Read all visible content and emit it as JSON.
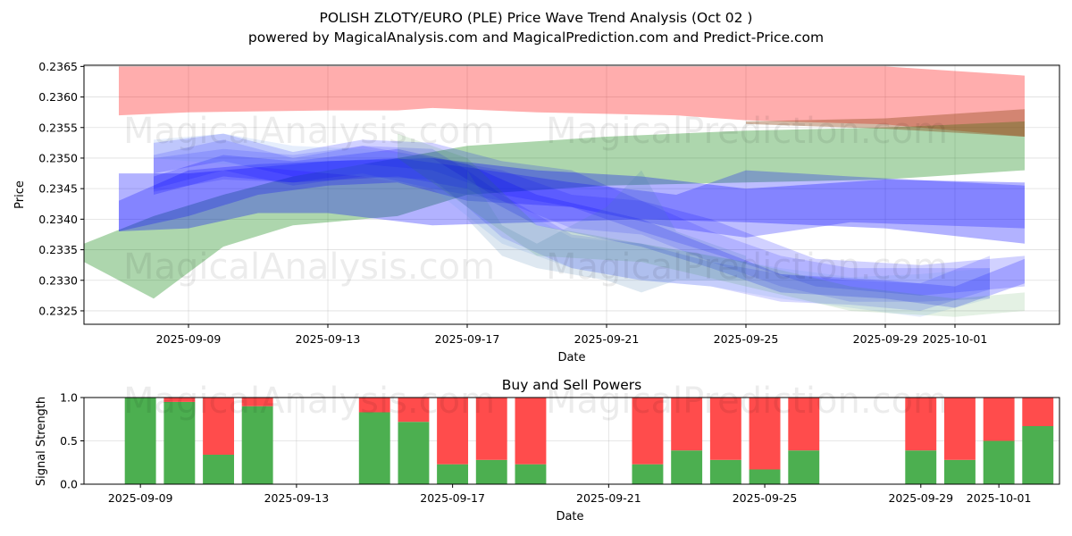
{
  "chart_data": [
    {
      "type": "area",
      "title": "POLISH ZLOTY/EURO (PLE) Price Wave Trend Analysis (Oct 02 )",
      "subtitle": "powered by MagicalAnalysis.com and MagicalPrediction.com and Predict-Price.com",
      "xlabel": "Date",
      "ylabel": "Price",
      "xlim": [
        "2025-09-06",
        "2025-10-04"
      ],
      "ylim": [
        0.23228,
        0.23652
      ],
      "x_ticks": [
        "2025-09-09",
        "2025-09-13",
        "2025-09-17",
        "2025-09-21",
        "2025-09-25",
        "2025-09-29",
        "2025-10-01"
      ],
      "y_ticks": [
        "0.2325",
        "0.2330",
        "0.2335",
        "0.2340",
        "0.2345",
        "0.2350",
        "0.2355",
        "0.2360",
        "0.2365"
      ],
      "grid": true,
      "watermarks": [
        "MagicalAnalysis.com",
        "MagicalPrediction.com"
      ],
      "bands": [
        {
          "color": "#ff0000",
          "opacity": 0.32,
          "x": [
            "2025-09-07",
            "2025-09-09",
            "2025-09-13",
            "2025-09-15",
            "2025-09-16",
            "2025-09-19",
            "2025-09-23",
            "2025-09-25",
            "2025-09-29",
            "2025-10-03"
          ],
          "upper": [
            0.2365,
            0.2365,
            0.2365,
            0.2365,
            0.2365,
            0.2365,
            0.2365,
            0.2365,
            0.2365,
            0.23635
          ],
          "lower": [
            0.2357,
            0.23575,
            0.23578,
            0.23578,
            0.23582,
            0.23575,
            0.2357,
            0.23562,
            0.23555,
            0.23535
          ]
        },
        {
          "color": "#008000",
          "opacity": 0.32,
          "x": [
            "2025-09-06",
            "2025-09-08",
            "2025-09-10",
            "2025-09-12",
            "2025-09-15",
            "2025-09-17",
            "2025-09-21",
            "2025-09-25",
            "2025-09-29",
            "2025-10-03"
          ],
          "upper": [
            0.2336,
            0.23405,
            0.2344,
            0.2347,
            0.235,
            0.2352,
            0.23535,
            0.23545,
            0.2355,
            0.2356
          ],
          "lower": [
            0.2333,
            0.2327,
            0.23355,
            0.2339,
            0.23405,
            0.2344,
            0.23455,
            0.2346,
            0.23465,
            0.2348
          ]
        },
        {
          "color": "#8b4513",
          "opacity": 0.38,
          "x": [
            "2025-09-25",
            "2025-09-29",
            "2025-10-03"
          ],
          "upper": [
            0.2356,
            0.23565,
            0.2358
          ],
          "lower": [
            0.23556,
            0.23548,
            0.23535
          ]
        },
        {
          "color": "#0000ff",
          "opacity": 0.3,
          "x": [
            "2025-09-07",
            "2025-09-09",
            "2025-09-11",
            "2025-09-13",
            "2025-09-16",
            "2025-09-19",
            "2025-09-22",
            "2025-09-25",
            "2025-09-29",
            "2025-10-03"
          ],
          "upper": [
            0.23475,
            0.23475,
            0.23485,
            0.23495,
            0.235,
            0.2348,
            0.2347,
            0.2345,
            0.23465,
            0.2346
          ],
          "lower": [
            0.2338,
            0.23385,
            0.2341,
            0.2341,
            0.2339,
            0.23395,
            0.234,
            0.23395,
            0.23385,
            0.2336
          ]
        },
        {
          "color": "#0000ff",
          "opacity": 0.26,
          "x": [
            "2025-09-07",
            "2025-09-09",
            "2025-09-11",
            "2025-09-13",
            "2025-09-15",
            "2025-09-17",
            "2025-09-20",
            "2025-09-23",
            "2025-09-25",
            "2025-09-28",
            "2025-10-03"
          ],
          "upper": [
            0.2343,
            0.2348,
            0.2349,
            0.23495,
            0.235,
            0.23485,
            0.2346,
            0.2344,
            0.2348,
            0.2347,
            0.23455
          ],
          "lower": [
            0.2338,
            0.23405,
            0.2344,
            0.23455,
            0.2346,
            0.2343,
            0.2342,
            0.23385,
            0.2337,
            0.23395,
            0.23385
          ]
        },
        {
          "color": "#0000ff",
          "opacity": 0.22,
          "x": [
            "2025-09-08",
            "2025-09-10",
            "2025-09-12",
            "2025-09-15",
            "2025-09-17",
            "2025-09-19",
            "2025-09-22",
            "2025-09-24",
            "2025-09-26",
            "2025-09-29",
            "2025-10-01",
            "2025-10-03"
          ],
          "upper": [
            0.2347,
            0.23505,
            0.23495,
            0.23515,
            0.2349,
            0.2344,
            0.234,
            0.23355,
            0.2331,
            0.233,
            0.2329,
            0.23335
          ],
          "lower": [
            0.2344,
            0.2347,
            0.2346,
            0.2347,
            0.2345,
            0.2339,
            0.23355,
            0.2332,
            0.2328,
            0.2327,
            0.23255,
            0.23295
          ]
        },
        {
          "color": "#0000ff",
          "opacity": 0.18,
          "x": [
            "2025-09-08",
            "2025-09-10",
            "2025-09-12",
            "2025-09-14",
            "2025-09-16",
            "2025-09-18",
            "2025-09-20",
            "2025-09-22",
            "2025-09-24",
            "2025-09-27",
            "2025-09-30",
            "2025-10-03"
          ],
          "upper": [
            0.23525,
            0.2354,
            0.2351,
            0.2353,
            0.23525,
            0.23495,
            0.2348,
            0.2343,
            0.234,
            0.23335,
            0.23325,
            0.2334
          ],
          "lower": [
            0.23475,
            0.23495,
            0.2347,
            0.2349,
            0.2348,
            0.2344,
            0.2342,
            0.2338,
            0.23345,
            0.2329,
            0.23275,
            0.2329
          ]
        },
        {
          "color": "#0000ff",
          "opacity": 0.15,
          "x": [
            "2025-09-08",
            "2025-09-10",
            "2025-09-12",
            "2025-09-14",
            "2025-09-16",
            "2025-09-17",
            "2025-09-18",
            "2025-09-20",
            "2025-09-22",
            "2025-09-24",
            "2025-09-26",
            "2025-09-28",
            "2025-09-30",
            "2025-10-02"
          ],
          "upper": [
            0.23505,
            0.2353,
            0.235,
            0.2352,
            0.23515,
            0.2348,
            0.2344,
            0.23375,
            0.2336,
            0.2333,
            0.2331,
            0.233,
            0.23295,
            0.2334
          ],
          "lower": [
            0.2345,
            0.2348,
            0.23455,
            0.2347,
            0.23465,
            0.2342,
            0.2337,
            0.2332,
            0.233,
            0.2329,
            0.23265,
            0.2326,
            0.2325,
            0.23285
          ]
        },
        {
          "color": "#0000ff",
          "opacity": 0.14,
          "x": [
            "2025-09-08",
            "2025-09-10",
            "2025-09-12",
            "2025-09-14",
            "2025-09-16",
            "2025-09-18",
            "2025-09-20",
            "2025-09-22",
            "2025-09-24",
            "2025-09-26",
            "2025-09-28",
            "2025-09-30",
            "2025-10-02"
          ],
          "upper": [
            0.235,
            0.23515,
            0.23505,
            0.2352,
            0.235,
            0.2348,
            0.2344,
            0.2343,
            0.2338,
            0.2334,
            0.2332,
            0.2332,
            0.2332
          ],
          "lower": [
            0.23445,
            0.23465,
            0.2346,
            0.23475,
            0.2345,
            0.2343,
            0.23385,
            0.23375,
            0.2333,
            0.2329,
            0.23265,
            0.23265,
            0.2327
          ]
        },
        {
          "color": "#6495ed",
          "opacity": 0.16,
          "x": [
            "2025-09-08",
            "2025-09-10",
            "2025-09-12",
            "2025-09-14",
            "2025-09-16",
            "2025-09-18",
            "2025-09-20",
            "2025-09-22",
            "2025-09-24",
            "2025-09-26",
            "2025-09-28",
            "2025-09-30",
            "2025-10-02"
          ],
          "upper": [
            0.2353,
            0.2354,
            0.2352,
            0.23515,
            0.235,
            0.2343,
            0.2337,
            0.2336,
            0.2334,
            0.2332,
            0.23305,
            0.2331,
            0.2332
          ],
          "lower": [
            0.235,
            0.2349,
            0.2348,
            0.2347,
            0.2345,
            0.2336,
            0.2332,
            0.233,
            0.2329,
            0.2327,
            0.23255,
            0.2324,
            0.2327
          ]
        },
        {
          "color": "#4682b4",
          "opacity": 0.18,
          "x": [
            "2025-09-17",
            "2025-09-18",
            "2025-09-19",
            "2025-09-21",
            "2025-09-22",
            "2025-09-23",
            "2025-09-25"
          ],
          "upper": [
            0.2348,
            0.2339,
            0.2336,
            0.2342,
            0.2348,
            0.2338,
            0.2334
          ],
          "lower": [
            0.234,
            0.2334,
            0.2332,
            0.233,
            0.2328,
            0.233,
            0.233
          ]
        },
        {
          "color": "#228b22",
          "opacity": 0.12,
          "x": [
            "2025-09-15",
            "2025-09-17",
            "2025-09-19",
            "2025-09-22",
            "2025-09-25",
            "2025-09-28",
            "2025-10-01",
            "2025-10-03"
          ],
          "upper": [
            0.2354,
            0.235,
            0.2339,
            0.2336,
            0.2333,
            0.2329,
            0.2327,
            0.2328
          ],
          "lower": [
            0.235,
            0.2342,
            0.2334,
            0.2333,
            0.2329,
            0.2325,
            0.2324,
            0.2325
          ]
        }
      ]
    },
    {
      "type": "bar",
      "title": "Buy and Sell Powers",
      "xlabel": "Date",
      "ylabel": "Signal Strength",
      "ylim": [
        0,
        1
      ],
      "y_ticks": [
        "0.0",
        "0.5",
        "1.0"
      ],
      "x_ticks": [
        "2025-09-09",
        "2025-09-13",
        "2025-09-17",
        "2025-09-21",
        "2025-09-25",
        "2025-09-29",
        "2025-10-01"
      ],
      "xlim": [
        "2025-09-08",
        "2025-10-03"
      ],
      "grid": true,
      "watermarks": [
        "MagicalAnalysis.com",
        "MagicalPrediction.com"
      ],
      "series": [
        {
          "name": "buy",
          "color": "#4caf50"
        },
        {
          "name": "sell",
          "color": "#ff4c4c"
        }
      ],
      "bars": [
        {
          "date": "2025-09-09",
          "buy": 1.0
        },
        {
          "date": "2025-09-10",
          "buy": 0.95
        },
        {
          "date": "2025-09-11",
          "buy": 0.34
        },
        {
          "date": "2025-09-12",
          "buy": 0.9
        },
        {
          "date": "2025-09-15",
          "buy": 0.83
        },
        {
          "date": "2025-09-16",
          "buy": 0.72
        },
        {
          "date": "2025-09-17",
          "buy": 0.23
        },
        {
          "date": "2025-09-18",
          "buy": 0.28
        },
        {
          "date": "2025-09-19",
          "buy": 0.23
        },
        {
          "date": "2025-09-22",
          "buy": 0.23
        },
        {
          "date": "2025-09-23",
          "buy": 0.39
        },
        {
          "date": "2025-09-24",
          "buy": 0.28
        },
        {
          "date": "2025-09-25",
          "buy": 0.17
        },
        {
          "date": "2025-09-26",
          "buy": 0.39
        },
        {
          "date": "2025-09-29",
          "buy": 0.39
        },
        {
          "date": "2025-09-30",
          "buy": 0.28
        },
        {
          "date": "2025-10-01",
          "buy": 0.5
        },
        {
          "date": "2025-10-02",
          "buy": 0.67
        }
      ]
    }
  ]
}
